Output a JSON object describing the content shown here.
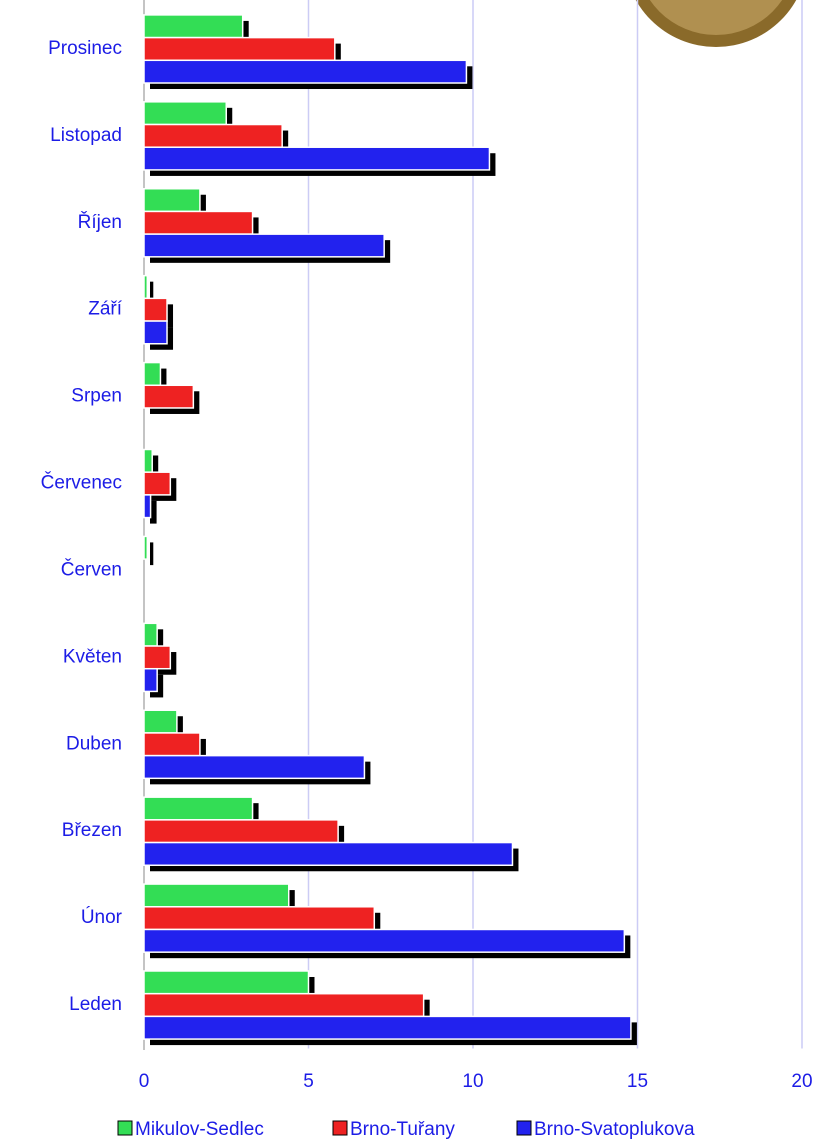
{
  "chart_data": {
    "type": "bar",
    "orientation": "horizontal",
    "categories": [
      "Leden",
      "Únor",
      "Březen",
      "Duben",
      "Květen",
      "Červen",
      "Červenec",
      "Srpen",
      "Září",
      "Říjen",
      "Listopad",
      "Prosinec"
    ],
    "series": [
      {
        "name": "Mikulov-Sedlec",
        "color": "#33dd55",
        "values": [
          5.0,
          4.4,
          3.3,
          1.0,
          0.4,
          0.1,
          0.25,
          0.5,
          0.1,
          1.7,
          2.5,
          3.0
        ]
      },
      {
        "name": "Brno-Tuřany",
        "color": "#ee2222",
        "values": [
          8.5,
          7.0,
          5.9,
          1.7,
          0.8,
          0,
          0.8,
          1.5,
          0.7,
          3.3,
          4.2,
          5.8
        ]
      },
      {
        "name": "Brno-Svatoplukova",
        "color": "#2222ee",
        "values": [
          14.8,
          14.6,
          11.2,
          6.7,
          0.4,
          0,
          0.2,
          0,
          0.7,
          7.3,
          10.5,
          9.8
        ]
      }
    ],
    "xlim": [
      0,
      20
    ],
    "xticks": [
      0,
      5,
      10,
      15,
      20
    ],
    "grid": true
  }
}
